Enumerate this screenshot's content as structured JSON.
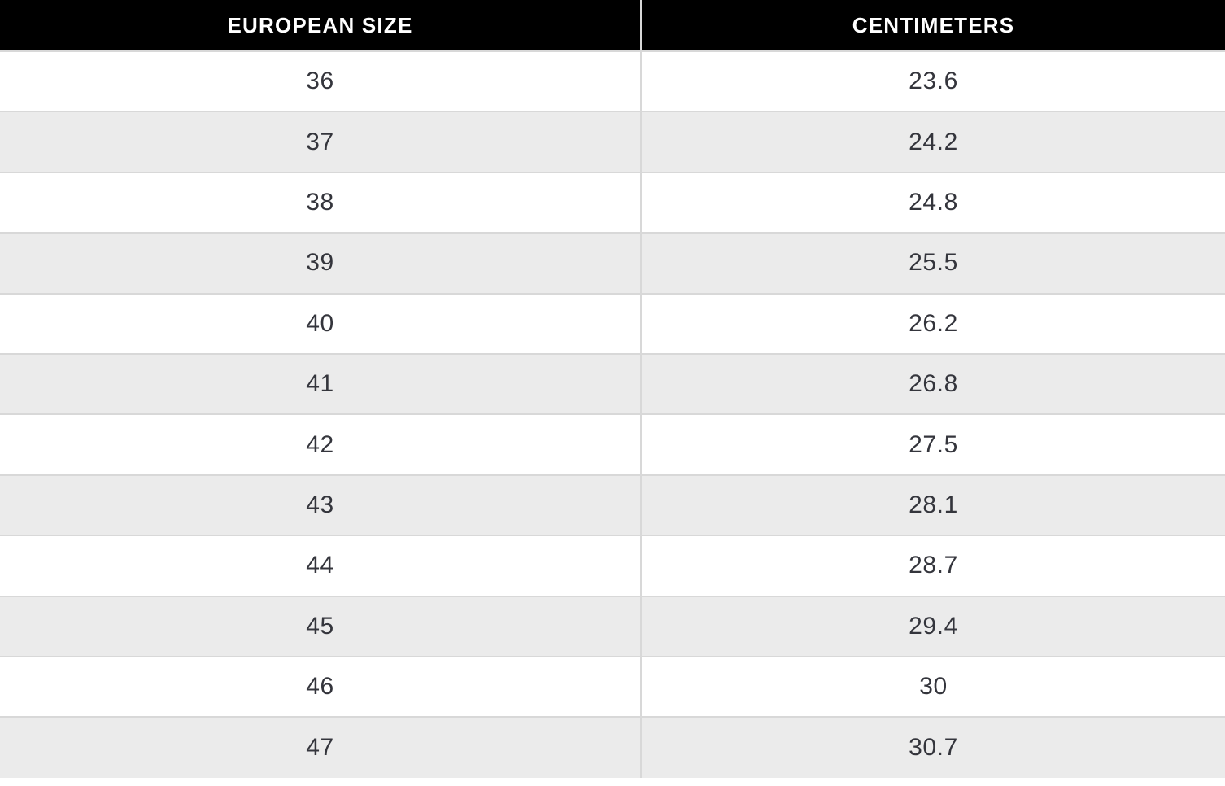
{
  "table": {
    "columns": [
      {
        "id": "european-size",
        "label": "EUROPEAN SIZE"
      },
      {
        "id": "centimeters",
        "label": "CENTIMETERS"
      }
    ],
    "rows": [
      {
        "european_size": "36",
        "centimeters": "23.6"
      },
      {
        "european_size": "37",
        "centimeters": "24.2"
      },
      {
        "european_size": "38",
        "centimeters": "24.8"
      },
      {
        "european_size": "39",
        "centimeters": "25.5"
      },
      {
        "european_size": "40",
        "centimeters": "26.2"
      },
      {
        "european_size": "41",
        "centimeters": "26.8"
      },
      {
        "european_size": "42",
        "centimeters": "27.5"
      },
      {
        "european_size": "43",
        "centimeters": "28.1"
      },
      {
        "european_size": "44",
        "centimeters": "28.7"
      },
      {
        "european_size": "45",
        "centimeters": "29.4"
      },
      {
        "european_size": "46",
        "centimeters": "30"
      },
      {
        "european_size": "47",
        "centimeters": "30.7"
      }
    ],
    "colors": {
      "header_bg": "#000000",
      "header_text": "#ffffff",
      "row_bg": "#ffffff",
      "row_alt_bg": "#ebebeb",
      "border": "#d8d8d8",
      "cell_text": "#34353c"
    }
  },
  "chart_data": {
    "type": "table",
    "columns": [
      "EUROPEAN SIZE",
      "CENTIMETERS"
    ],
    "rows": [
      [
        36,
        23.6
      ],
      [
        37,
        24.2
      ],
      [
        38,
        24.8
      ],
      [
        39,
        25.5
      ],
      [
        40,
        26.2
      ],
      [
        41,
        26.8
      ],
      [
        42,
        27.5
      ],
      [
        43,
        28.1
      ],
      [
        44,
        28.7
      ],
      [
        45,
        29.4
      ],
      [
        46,
        30
      ],
      [
        47,
        30.7
      ]
    ]
  }
}
